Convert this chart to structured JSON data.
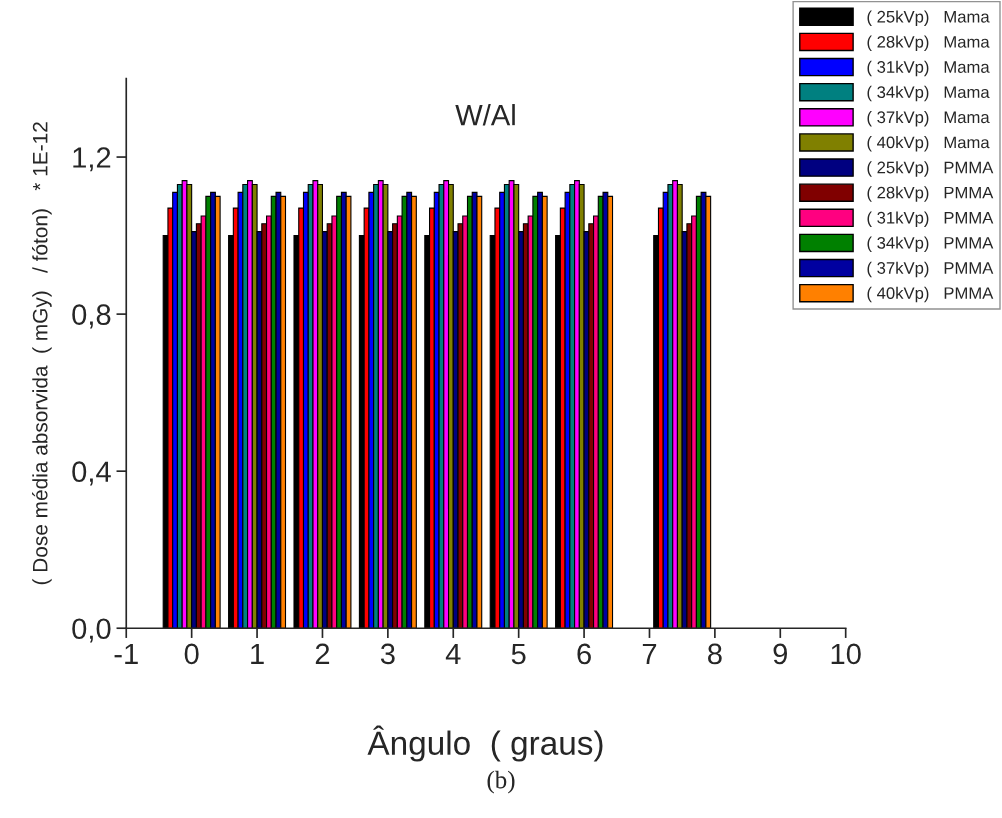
{
  "chart_data": {
    "type": "bar",
    "title": "W/Al",
    "xlabel": "Ângulo  ( graus)",
    "ylabel": "( Dose média absorvida  ( mGy)   / fóton)   * 1E-12",
    "x": [
      0,
      1,
      2,
      3,
      4,
      5,
      6,
      7.5
    ],
    "series": [
      {
        "name": "( 25kVp)   Mama",
        "color": "#000000",
        "values": [
          1.0,
          1.0,
          1.0,
          1.0,
          1.0,
          1.0,
          1.0,
          1.0
        ]
      },
      {
        "name": "( 28kVp)   Mama",
        "color": "#ff0000",
        "values": [
          1.07,
          1.07,
          1.07,
          1.07,
          1.07,
          1.07,
          1.07,
          1.07
        ]
      },
      {
        "name": "( 31kVp)   Mama",
        "color": "#0000ff",
        "values": [
          1.11,
          1.11,
          1.11,
          1.11,
          1.11,
          1.11,
          1.11,
          1.11
        ]
      },
      {
        "name": "( 34kVp)   Mama",
        "color": "#008080",
        "values": [
          1.13,
          1.13,
          1.13,
          1.13,
          1.13,
          1.13,
          1.13,
          1.13
        ]
      },
      {
        "name": "( 37kVp)   Mama",
        "color": "#ff00ff",
        "values": [
          1.14,
          1.14,
          1.14,
          1.14,
          1.14,
          1.14,
          1.14,
          1.14
        ]
      },
      {
        "name": "( 40kVp)   Mama",
        "color": "#808000",
        "values": [
          1.13,
          1.13,
          1.13,
          1.13,
          1.13,
          1.13,
          1.13,
          1.13
        ]
      },
      {
        "name": "( 25kVp)   PMMA",
        "color": "#000080",
        "values": [
          1.01,
          1.01,
          1.01,
          1.01,
          1.01,
          1.01,
          1.01,
          1.01
        ]
      },
      {
        "name": "( 28kVp)   PMMA",
        "color": "#800000",
        "values": [
          1.03,
          1.03,
          1.03,
          1.03,
          1.03,
          1.03,
          1.03,
          1.03
        ]
      },
      {
        "name": "( 31kVp)   PMMA",
        "color": "#ff0080",
        "values": [
          1.05,
          1.05,
          1.05,
          1.05,
          1.05,
          1.05,
          1.05,
          1.05
        ]
      },
      {
        "name": "( 34kVp)   PMMA",
        "color": "#008000",
        "values": [
          1.1,
          1.1,
          1.1,
          1.1,
          1.1,
          1.1,
          1.1,
          1.1
        ]
      },
      {
        "name": "( 37kVp)   PMMA",
        "color": "#0000a0",
        "values": [
          1.11,
          1.11,
          1.11,
          1.11,
          1.11,
          1.11,
          1.11,
          1.11
        ]
      },
      {
        "name": "( 40kVp)   PMMA",
        "color": "#ff8000",
        "values": [
          1.1,
          1.1,
          1.1,
          1.1,
          1.1,
          1.1,
          1.1,
          1.1
        ]
      }
    ],
    "xlim": [
      -1,
      10
    ],
    "xticks": [
      -1,
      0,
      1,
      2,
      3,
      4,
      5,
      6,
      7,
      8,
      9,
      10
    ],
    "ylim": [
      0,
      1.4
    ],
    "yticks": [
      {
        "value": 0,
        "label": "0,0"
      },
      {
        "value": 0.4,
        "label": "0,4"
      },
      {
        "value": 0.8,
        "label": "0,8"
      },
      {
        "value": 1.2,
        "label": "1,2"
      }
    ],
    "legend": "top right",
    "grid": false,
    "annotations": [
      "(b)"
    ]
  }
}
